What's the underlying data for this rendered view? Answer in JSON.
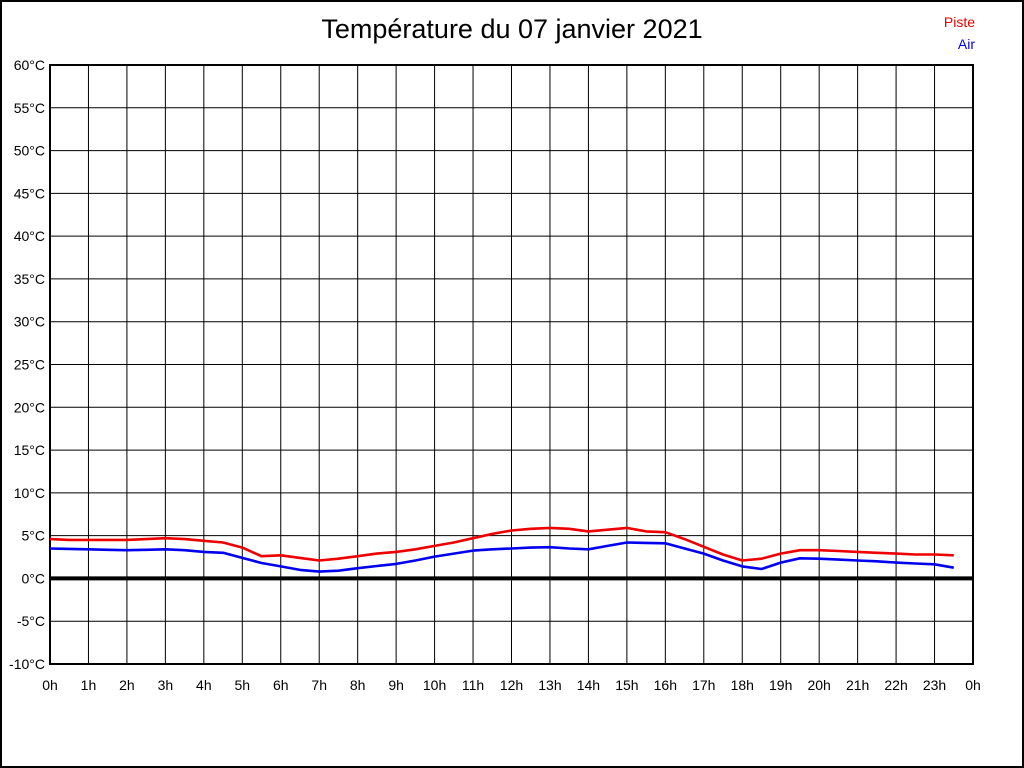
{
  "title": "Température du 07 janvier 2021",
  "legend": {
    "items": [
      {
        "label": "Piste",
        "color": "#ee0000"
      },
      {
        "label": "Air",
        "color": "#0000ee"
      }
    ]
  },
  "axes": {
    "y_tick_labels": [
      "60°C",
      "55°C",
      "50°C",
      "45°C",
      "40°C",
      "35°C",
      "30°C",
      "25°C",
      "20°C",
      "15°C",
      "10°C",
      "5°C",
      "0°C",
      "-5°C",
      "-10°C"
    ],
    "y_tick_values": [
      60,
      55,
      50,
      45,
      40,
      35,
      30,
      25,
      20,
      15,
      10,
      5,
      0,
      -5,
      -10
    ],
    "x_tick_labels": [
      "0h",
      "1h",
      "2h",
      "3h",
      "4h",
      "5h",
      "6h",
      "7h",
      "8h",
      "9h",
      "10h",
      "11h",
      "12h",
      "13h",
      "14h",
      "15h",
      "16h",
      "17h",
      "18h",
      "19h",
      "20h",
      "21h",
      "22h",
      "23h",
      "0h"
    ],
    "x_tick_hours": [
      0,
      1,
      2,
      3,
      4,
      5,
      6,
      7,
      8,
      9,
      10,
      11,
      12,
      13,
      14,
      15,
      16,
      17,
      18,
      19,
      20,
      21,
      22,
      23,
      24
    ]
  },
  "chart_data": {
    "type": "line",
    "title": "Température du 07 janvier 2021",
    "xlabel": "",
    "ylabel": "",
    "ylim": [
      -10,
      60
    ],
    "y_tick_step": 5,
    "xlim_hours": [
      0,
      24
    ],
    "grid": true,
    "legend_position": "top-right",
    "zero_line": {
      "value": 0,
      "color": "#000000",
      "thick": true
    },
    "x": [
      0,
      0.5,
      1,
      1.5,
      2,
      2.5,
      3,
      3.5,
      4,
      4.5,
      5,
      5.5,
      6,
      6.5,
      7,
      7.5,
      8,
      8.5,
      9,
      9.5,
      10,
      10.5,
      11,
      11.5,
      12,
      12.5,
      13,
      13.5,
      14,
      14.5,
      15,
      15.5,
      16,
      16.5,
      17,
      17.5,
      18,
      18.5,
      19,
      19.5,
      20,
      20.5,
      21,
      21.5,
      22,
      22.5,
      23,
      23.5
    ],
    "series": [
      {
        "name": "Piste",
        "color": "#ee0000",
        "values": [
          4.6,
          4.5,
          4.5,
          4.5,
          4.5,
          4.6,
          4.7,
          4.6,
          4.4,
          4.2,
          3.6,
          2.6,
          2.7,
          2.4,
          2.1,
          2.3,
          2.6,
          2.9,
          3.1,
          3.4,
          3.8,
          4.2,
          4.7,
          5.2,
          5.6,
          5.8,
          5.9,
          5.8,
          5.5,
          5.7,
          5.9,
          5.5,
          5.4,
          4.6,
          3.7,
          2.8,
          2.1,
          2.3,
          2.9,
          3.3,
          3.3,
          3.2,
          3.1,
          3.0,
          2.9,
          2.8,
          2.8,
          2.7
        ]
      },
      {
        "name": "Air",
        "color": "#0000ee",
        "values": [
          3.5,
          3.45,
          3.4,
          3.35,
          3.3,
          3.35,
          3.4,
          3.3,
          3.1,
          3.0,
          2.4,
          1.8,
          1.4,
          1.0,
          0.8,
          0.9,
          1.2,
          1.45,
          1.7,
          2.1,
          2.55,
          2.9,
          3.25,
          3.4,
          3.5,
          3.6,
          3.65,
          3.5,
          3.4,
          3.8,
          4.2,
          4.15,
          4.1,
          3.5,
          2.9,
          2.1,
          1.4,
          1.1,
          1.85,
          2.35,
          2.3,
          2.2,
          2.1,
          2.0,
          1.85,
          1.75,
          1.65,
          1.25
        ]
      }
    ]
  }
}
